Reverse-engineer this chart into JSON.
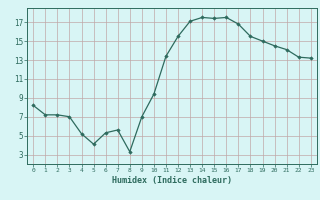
{
  "x": [
    0,
    1,
    2,
    3,
    4,
    5,
    6,
    7,
    8,
    9,
    10,
    11,
    12,
    13,
    14,
    15,
    16,
    17,
    18,
    19,
    20,
    21,
    22,
    23
  ],
  "y": [
    8.2,
    7.2,
    7.2,
    7.0,
    5.2,
    4.1,
    5.3,
    5.6,
    3.3,
    7.0,
    9.4,
    13.4,
    15.5,
    17.1,
    17.5,
    17.4,
    17.5,
    16.8,
    15.5,
    15.0,
    14.5,
    14.1,
    13.3,
    13.2
  ],
  "xlabel": "Humidex (Indice chaleur)",
  "xlim": [
    -0.5,
    23.5
  ],
  "ylim": [
    2.0,
    18.5
  ],
  "yticks": [
    3,
    5,
    7,
    9,
    11,
    13,
    15,
    17
  ],
  "xticks": [
    0,
    1,
    2,
    3,
    4,
    5,
    6,
    7,
    8,
    9,
    10,
    11,
    12,
    13,
    14,
    15,
    16,
    17,
    18,
    19,
    20,
    21,
    22,
    23
  ],
  "line_color": "#2e6b5e",
  "marker": "D",
  "marker_size": 1.8,
  "bg_color": "#d8f5f5",
  "grid_color": "#c0a8a8",
  "fig_bg": "#d8f5f5"
}
